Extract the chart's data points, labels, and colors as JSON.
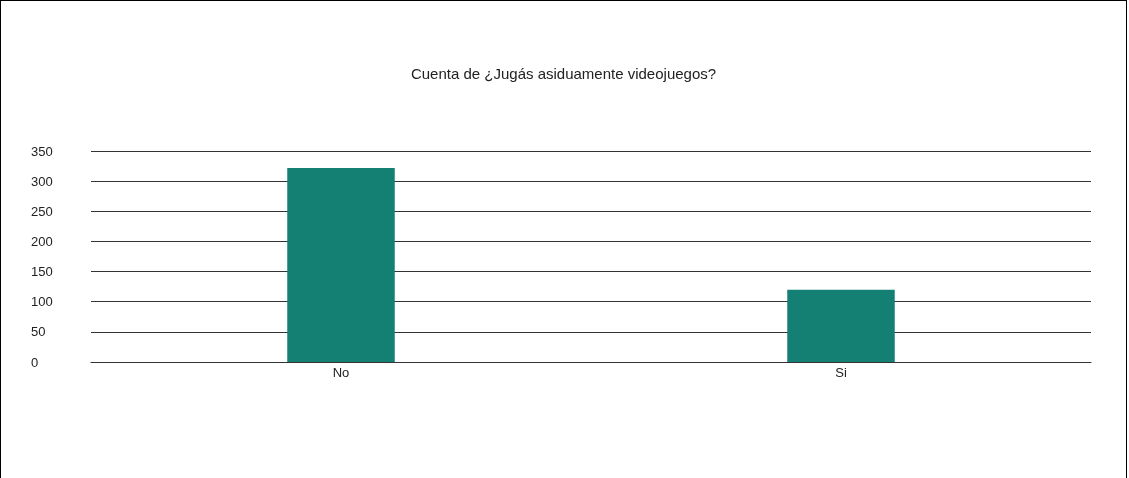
{
  "chart_data": {
    "type": "bar",
    "title": "Cuenta de ¿Jugás asiduamente videojuegos?",
    "categories": [
      "No",
      "Si"
    ],
    "values": [
      322,
      120
    ],
    "color": "#138073",
    "ylim": [
      0,
      350
    ],
    "yticks": [
      0,
      50,
      100,
      150,
      200,
      250,
      300,
      350
    ],
    "grid": "y"
  }
}
